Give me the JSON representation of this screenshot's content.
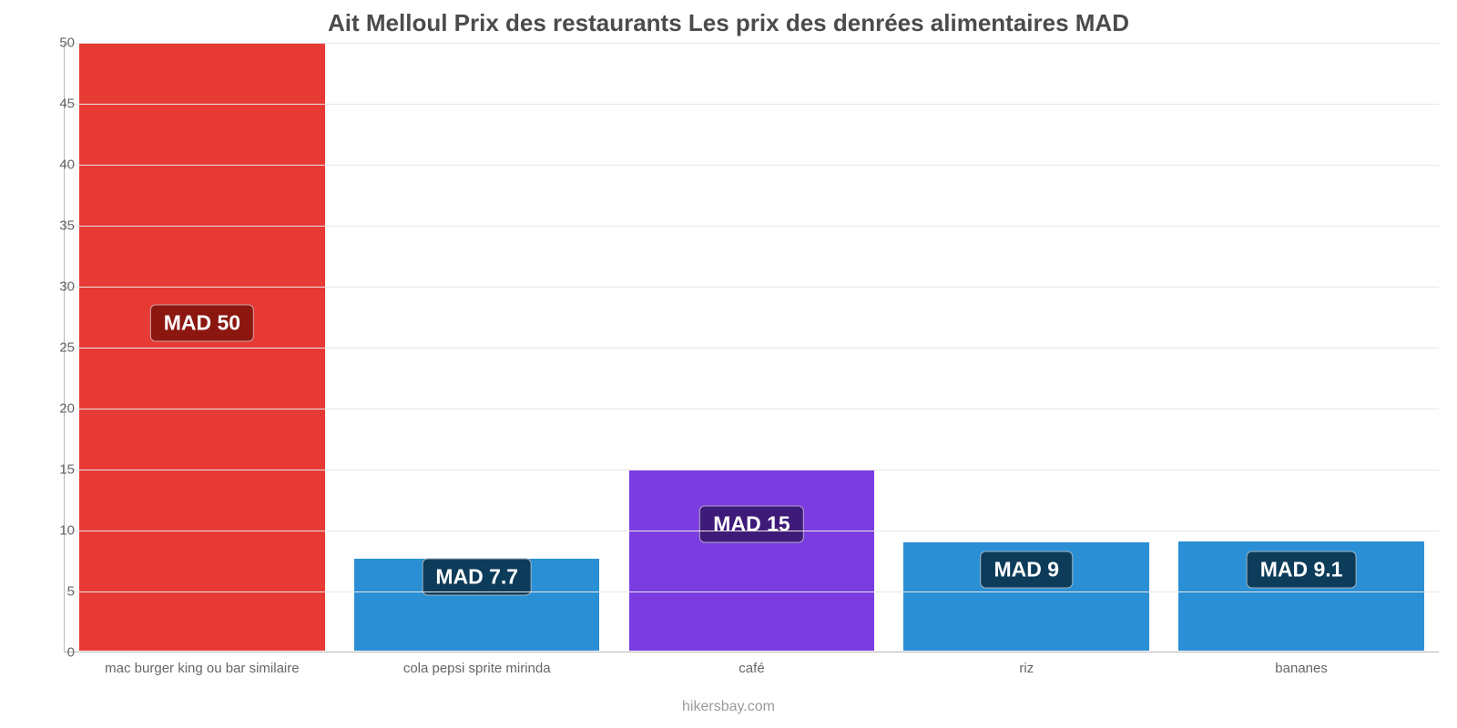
{
  "chart": {
    "type": "bar",
    "title": "Ait Melloul Prix des restaurants Les prix des denrées alimentaires MAD",
    "title_fontsize": 26,
    "title_color": "#4b4b4b",
    "footer": "hikersbay.com",
    "footer_color": "#9a9a9a",
    "background_color": "#ffffff",
    "grid_color": "#e6e6e6",
    "axis_color": "#b8b8b8",
    "tick_color": "#666666",
    "tick_fontsize": 15,
    "cat_fontsize": 15,
    "badge_fontsize": 23,
    "ylim": [
      0,
      50
    ],
    "ytick_step": 5,
    "yticks": [
      0,
      5,
      10,
      15,
      20,
      25,
      30,
      35,
      40,
      45,
      50
    ],
    "bar_width": 0.9,
    "categories": [
      "mac burger king ou bar similaire",
      "cola pepsi sprite mirinda",
      "café",
      "riz",
      "bananes"
    ],
    "values": [
      50,
      7.7,
      15,
      9,
      9.1
    ],
    "value_labels": [
      "MAD 50",
      "MAD 7.7",
      "MAD 15",
      "MAD 9",
      "MAD 9.1"
    ],
    "bar_colors": [
      "#e83a35",
      "#2a8fd4",
      "#7b3ce0",
      "#2a8fd4",
      "#2a8fd4"
    ],
    "badge_colors": [
      "#8b1710",
      "#0d3c5a",
      "#3f1b79",
      "#0d3c5a",
      "#0d3c5a"
    ],
    "badge_y_values": [
      27,
      6.2,
      10.5,
      6.8,
      6.8
    ]
  }
}
